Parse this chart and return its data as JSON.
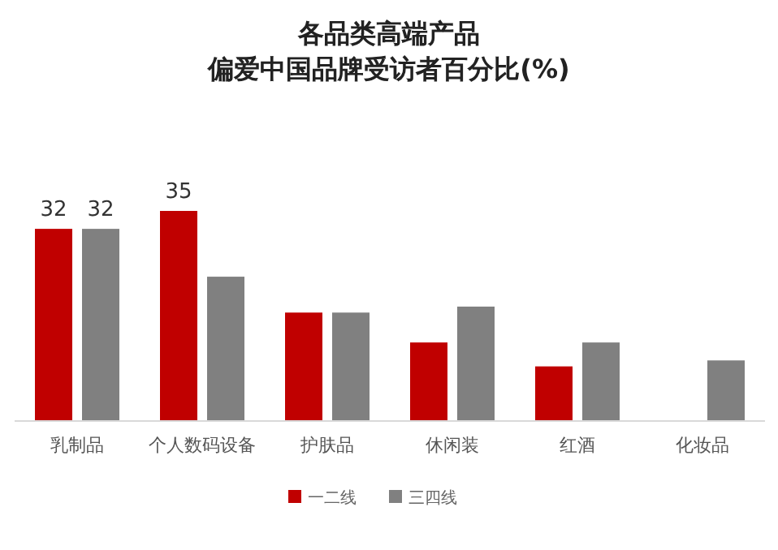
{
  "chart_data": {
    "type": "bar",
    "title": "各品类高端产品",
    "subtitle": "偏爱中国品牌受访者百分比(%)",
    "categories": [
      "乳制品",
      "个人数码设备",
      "护肤品",
      "休闲装",
      "红酒",
      "化妆品"
    ],
    "series": [
      {
        "name": "一二线",
        "color": "#c00000",
        "values": [
          32,
          35,
          18,
          13,
          9,
          null
        ],
        "value_labels": [
          "32",
          "35",
          null,
          null,
          null,
          null
        ]
      },
      {
        "name": "三四线",
        "color": "#808080",
        "values": [
          32,
          24,
          18,
          19,
          13,
          10
        ],
        "value_labels": [
          "32",
          null,
          null,
          null,
          null,
          null
        ]
      }
    ],
    "legend": "bottom"
  }
}
